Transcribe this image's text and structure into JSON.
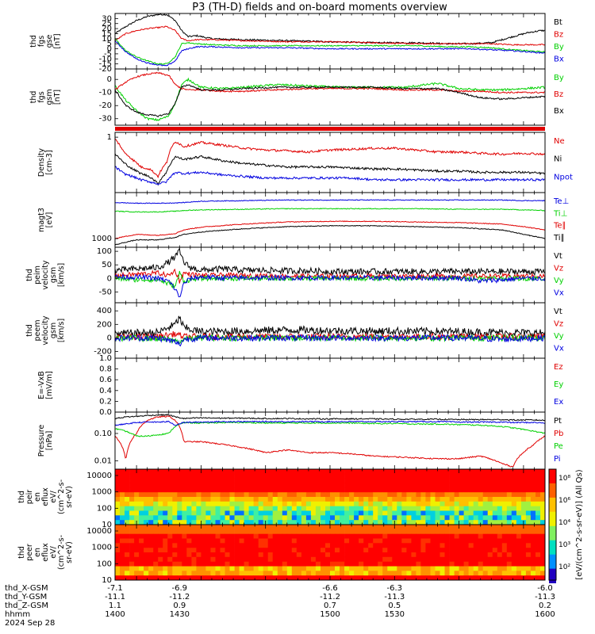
{
  "title": "P3 (TH-D) fields and on-board moments overview",
  "colors": {
    "black": "#000000",
    "red": "#e00000",
    "green": "#00d000",
    "blue": "#0000e0",
    "orange": "#ff8800",
    "yellow": "#f0e000",
    "cyan": "#00c0f0"
  },
  "chart_data": [
    {
      "type": "line",
      "panel": "fgs-gse",
      "ylabel_lines": [
        "thd",
        "fgs",
        "gse",
        "[nT]"
      ],
      "yticks": [
        "30",
        "25",
        "20",
        "15",
        "10",
        "5",
        "0",
        "-5",
        "-10",
        "-15",
        "-20"
      ],
      "ylim": [
        -20,
        35
      ],
      "x": [
        1400,
        1405,
        1410,
        1415,
        1420,
        1424,
        1428,
        1431,
        1434,
        1438,
        1445,
        1460,
        1480,
        1500,
        1520,
        1540,
        1555,
        1565,
        1575,
        1585,
        1592,
        1598,
        1600
      ],
      "series": [
        {
          "name": "Bt",
          "color": "black",
          "values": [
            15,
            22,
            28,
            32,
            34,
            34,
            28,
            18,
            12,
            13,
            10,
            9,
            8,
            7,
            6,
            6,
            5,
            5,
            6,
            12,
            16,
            18,
            18
          ]
        },
        {
          "name": "Bz",
          "color": "red",
          "values": [
            8,
            15,
            18,
            20,
            21,
            22,
            18,
            10,
            8,
            9,
            9,
            8,
            7,
            7,
            6,
            5,
            5,
            5,
            5,
            4,
            4,
            4,
            4
          ]
        },
        {
          "name": "By",
          "color": "green",
          "values": [
            10,
            -2,
            -8,
            -12,
            -15,
            -15,
            -8,
            5,
            6,
            5,
            4,
            3,
            3,
            3,
            3,
            3,
            2,
            2,
            1,
            -1,
            -2,
            -3,
            -3
          ]
        },
        {
          "name": "Bx",
          "color": "blue",
          "values": [
            8,
            -3,
            -10,
            -14,
            -16,
            -17,
            -12,
            -2,
            0,
            2,
            2,
            1,
            1,
            0,
            0,
            0,
            0,
            0,
            -1,
            -2,
            -3,
            -4,
            -4
          ]
        }
      ]
    },
    {
      "type": "line",
      "panel": "fgs-gsm",
      "ylabel_lines": [
        "thd",
        "fgs",
        "gsm",
        "[nT]"
      ],
      "yticks": [
        "0",
        "-10",
        "-20",
        "-30"
      ],
      "ylim": [
        -35,
        8
      ],
      "x": [
        1400,
        1405,
        1410,
        1415,
        1420,
        1425,
        1428,
        1431,
        1434,
        1440,
        1450,
        1460,
        1475,
        1490,
        1505,
        1520,
        1535,
        1550,
        1560,
        1570,
        1580,
        1590,
        1600
      ],
      "series": [
        {
          "name": "By",
          "color": "green",
          "values": [
            -5,
            -16,
            -24,
            -30,
            -31,
            -28,
            -18,
            -4,
            0,
            -6,
            -7,
            -6,
            -4,
            -5,
            -6,
            -6,
            -6,
            -3,
            -7,
            -8,
            -8,
            -7,
            -6
          ]
        },
        {
          "name": "Bz",
          "color": "red",
          "values": [
            -8,
            -2,
            2,
            4,
            5,
            3,
            -4,
            -7,
            -8,
            -8,
            -9,
            -9,
            -8,
            -7,
            -7,
            -7,
            -8,
            -8,
            -9,
            -9,
            -10,
            -10,
            -10
          ]
        },
        {
          "name": "Bx",
          "color": "black",
          "values": [
            -8,
            -20,
            -25,
            -27,
            -28,
            -26,
            -18,
            -6,
            -4,
            -8,
            -8,
            -7,
            -6,
            -6,
            -6,
            -6,
            -7,
            -7,
            -10,
            -14,
            -15,
            -14,
            -13
          ]
        }
      ]
    },
    {
      "type": "line",
      "panel": "density",
      "ylabel_lines": [
        "Density",
        "[cm-3]"
      ],
      "yticks": [
        "1"
      ],
      "ylim": [
        0.05,
        1.3
      ],
      "yscale": "log",
      "x": [
        1400,
        1404,
        1408,
        1412,
        1416,
        1420,
        1424,
        1428,
        1432,
        1440,
        1450,
        1460,
        1470,
        1480,
        1490,
        1500,
        1510,
        1520,
        1530,
        1540,
        1550,
        1560,
        1570,
        1580,
        1590,
        1600
      ],
      "series": [
        {
          "name": "Ne",
          "color": "red",
          "values": [
            0.9,
            0.45,
            0.3,
            0.2,
            0.18,
            0.12,
            0.25,
            0.8,
            0.6,
            0.75,
            0.65,
            0.55,
            0.5,
            0.48,
            0.45,
            0.5,
            0.52,
            0.55,
            0.55,
            0.5,
            0.45,
            0.45,
            0.42,
            0.4,
            0.42,
            0.4
          ]
        },
        {
          "name": "Ni",
          "color": "black",
          "values": [
            0.4,
            0.25,
            0.18,
            0.14,
            0.12,
            0.08,
            0.15,
            0.35,
            0.3,
            0.35,
            0.28,
            0.24,
            0.22,
            0.2,
            0.2,
            0.2,
            0.19,
            0.18,
            0.18,
            0.17,
            0.16,
            0.16,
            0.15,
            0.15,
            0.15,
            0.14
          ]
        },
        {
          "name": "Npot",
          "color": "blue",
          "values": [
            0.2,
            0.14,
            0.12,
            0.1,
            0.09,
            0.08,
            0.09,
            0.15,
            0.14,
            0.15,
            0.13,
            0.12,
            0.11,
            0.11,
            0.11,
            0.11,
            0.11,
            0.1,
            0.1,
            0.1,
            0.1,
            0.1,
            0.1,
            0.1,
            0.1,
            0.1
          ]
        }
      ]
    },
    {
      "type": "line",
      "panel": "temperature",
      "ylabel_lines": [
        "magt3",
        "[eV]"
      ],
      "yticks": [
        "1000"
      ],
      "ylim": [
        500,
        40000
      ],
      "yscale": "log",
      "legend": [
        "Te⊥",
        "Te∥",
        "Ti⊥",
        "Ti∥"
      ],
      "x": [
        1400,
        1410,
        1420,
        1428,
        1432,
        1440,
        1460,
        1480,
        1500,
        1520,
        1540,
        1560,
        1580,
        1590,
        1600
      ],
      "series": [
        {
          "name": "Te⊥",
          "color": "blue",
          "values": [
            18000,
            17000,
            17000,
            17500,
            18000,
            20000,
            21000,
            22000,
            22000,
            22000,
            22000,
            22000,
            22000,
            21000,
            21000
          ]
        },
        {
          "name": "Ti⊥",
          "color": "green",
          "values": [
            9000,
            8500,
            8500,
            9000,
            9500,
            10000,
            10500,
            11000,
            11000,
            11000,
            11000,
            10500,
            10500,
            10000,
            9500
          ]
        },
        {
          "name": "Te∥",
          "color": "red",
          "values": [
            1000,
            1400,
            1300,
            1500,
            2000,
            2500,
            3200,
            3800,
            4000,
            4000,
            3800,
            3600,
            3200,
            2600,
            2000
          ]
        },
        {
          "name": "Ti∥",
          "color": "black",
          "values": [
            600,
            900,
            900,
            1100,
            1400,
            1700,
            2200,
            2600,
            2800,
            2800,
            2600,
            2400,
            2000,
            1400,
            1000
          ]
        }
      ]
    },
    {
      "type": "line",
      "panel": "peim-velocity",
      "ylabel_lines": [
        "thd",
        "peim",
        "velocity",
        "gsm",
        "[km/s]"
      ],
      "yticks": [
        "100",
        "50",
        "0",
        "-50"
      ],
      "ylim": [
        -90,
        115
      ],
      "x": [
        1400,
        1410,
        1420,
        1425,
        1428,
        1430,
        1432,
        1435,
        1440,
        1450,
        1460,
        1470,
        1480,
        1490,
        1500,
        1510,
        1520,
        1530,
        1540,
        1550,
        1560,
        1570,
        1580,
        1590,
        1600
      ],
      "series": [
        {
          "name": "Vt",
          "color": "black",
          "values": [
            30,
            35,
            40,
            60,
            80,
            100,
            60,
            40,
            30,
            35,
            30,
            30,
            28,
            28,
            25,
            25,
            25,
            25,
            25,
            25,
            25,
            25,
            25,
            25,
            25
          ]
        },
        {
          "name": "Vz",
          "color": "red",
          "values": [
            10,
            15,
            20,
            10,
            30,
            -10,
            20,
            15,
            10,
            12,
            10,
            10,
            8,
            8,
            8,
            8,
            8,
            8,
            8,
            8,
            8,
            8,
            8,
            8,
            8
          ]
        },
        {
          "name": "Vy",
          "color": "green",
          "values": [
            0,
            -5,
            -5,
            -20,
            -30,
            20,
            -10,
            -5,
            0,
            0,
            0,
            0,
            0,
            0,
            0,
            0,
            0,
            0,
            0,
            0,
            0,
            0,
            0,
            0,
            0
          ]
        },
        {
          "name": "Vx",
          "color": "blue",
          "values": [
            5,
            5,
            0,
            -10,
            -40,
            -70,
            -20,
            0,
            5,
            2,
            2,
            2,
            2,
            2,
            2,
            2,
            2,
            2,
            2,
            2,
            2,
            -10,
            -5,
            0,
            0
          ]
        }
      ]
    },
    {
      "type": "line",
      "panel": "peem-velocity",
      "ylabel_lines": [
        "thd",
        "peem",
        "velocity",
        "gsm",
        "[km/s]"
      ],
      "yticks": [
        "400",
        "200",
        "0",
        "-200"
      ],
      "ylim": [
        -300,
        520
      ],
      "x": [
        1400,
        1420,
        1428,
        1430,
        1432,
        1440,
        1460,
        1480,
        1500,
        1520,
        1540,
        1560,
        1580,
        1600
      ],
      "series": [
        {
          "name": "Vt",
          "color": "black",
          "values": [
            60,
            80,
            200,
            300,
            150,
            90,
            100,
            120,
            110,
            100,
            100,
            90,
            80,
            70
          ]
        },
        {
          "name": "Vz",
          "color": "red",
          "values": [
            10,
            20,
            60,
            40,
            20,
            20,
            20,
            20,
            20,
            20,
            20,
            20,
            20,
            20
          ]
        },
        {
          "name": "Vy",
          "color": "green",
          "values": [
            0,
            -10,
            -40,
            -60,
            -20,
            0,
            0,
            0,
            0,
            0,
            0,
            0,
            0,
            0
          ]
        },
        {
          "name": "Vx",
          "color": "blue",
          "values": [
            0,
            0,
            -60,
            -100,
            -20,
            0,
            0,
            0,
            0,
            0,
            0,
            0,
            -20,
            0
          ]
        }
      ]
    },
    {
      "type": "line",
      "panel": "efield",
      "ylabel_lines": [
        "E=-VxB",
        "[mV/m]"
      ],
      "yticks": [
        "1.0",
        "0.8",
        "0.6",
        "0.4",
        "0.2",
        "0.0"
      ],
      "ylim": [
        0,
        1
      ],
      "legend": [
        "Ez",
        "Ey",
        "Ex"
      ],
      "series": []
    },
    {
      "type": "line",
      "panel": "pressure",
      "ylabel_lines": [
        "Pressure",
        "[nPa]"
      ],
      "yticks": [
        "0.10",
        "0.01"
      ],
      "ylim": [
        0.005,
        0.6
      ],
      "yscale": "log",
      "x": [
        1400,
        1405,
        1410,
        1415,
        1420,
        1425,
        1428,
        1432,
        1440,
        1450,
        1460,
        1470,
        1480,
        1490,
        1500,
        1510,
        1520,
        1530,
        1540,
        1550,
        1560,
        1570,
        1580,
        1585,
        1590,
        1595,
        1600
      ],
      "series": [
        {
          "name": "Pt",
          "color": "black",
          "values": [
            0.35,
            0.4,
            0.42,
            0.45,
            0.47,
            0.48,
            0.4,
            0.35,
            0.37,
            0.36,
            0.36,
            0.35,
            0.35,
            0.34,
            0.34,
            0.34,
            0.34,
            0.33,
            0.33,
            0.33,
            0.32,
            0.32,
            0.32,
            0.31,
            0.31,
            0.31,
            0.3
          ]
        },
        {
          "name": "Pb",
          "color": "red",
          "values": [
            0.08,
            0.01,
            0.1,
            0.3,
            0.4,
            0.42,
            0.3,
            0.05,
            0.05,
            0.04,
            0.03,
            0.02,
            0.025,
            0.02,
            0.02,
            0.018,
            0.015,
            0.014,
            0.013,
            0.012,
            0.012,
            0.015,
            0.008,
            0.006,
            0.02,
            0.04,
            0.08
          ]
        },
        {
          "name": "Pe",
          "color": "green",
          "values": [
            0.15,
            0.12,
            0.08,
            0.08,
            0.09,
            0.1,
            0.18,
            0.25,
            0.24,
            0.25,
            0.25,
            0.24,
            0.24,
            0.24,
            0.24,
            0.24,
            0.23,
            0.23,
            0.22,
            0.22,
            0.21,
            0.2,
            0.18,
            0.16,
            0.14,
            0.12,
            0.1
          ]
        },
        {
          "name": "Pi",
          "color": "blue",
          "values": [
            0.2,
            0.22,
            0.25,
            0.26,
            0.26,
            0.27,
            0.2,
            0.25,
            0.26,
            0.27,
            0.27,
            0.27,
            0.27,
            0.27,
            0.27,
            0.27,
            0.27,
            0.27,
            0.27,
            0.27,
            0.26,
            0.26,
            0.26,
            0.25,
            0.25,
            0.25,
            0.24
          ]
        }
      ]
    },
    {
      "type": "heatmap",
      "panel": "peir-eflux",
      "ylabel_lines": [
        "thd",
        "peir",
        "en",
        "eflux",
        "eV/",
        "(cm^2-s-",
        "sr-eV)"
      ],
      "yticks": [
        "10000",
        "1000",
        "100",
        "10"
      ]
    },
    {
      "type": "heatmap",
      "panel": "peer-eflux",
      "ylabel_lines": [
        "thd",
        "peer",
        "en",
        "eflux",
        "eV/",
        "(cm^2-s-",
        "sr-eV)"
      ],
      "yticks": [
        "10000",
        "1000",
        "100",
        "10"
      ]
    }
  ],
  "colorbar": {
    "label": "[eV/(cm^2-s-sr-eV)] (All Qs)",
    "ticks": [
      "10⁸",
      "10⁶",
      "10⁴",
      "10³",
      "10²"
    ]
  },
  "xaxis": {
    "rows": [
      {
        "label": "thd_X-GSM",
        "values": [
          "-7.1",
          "-6.9",
          "-6.6",
          "-6.3",
          "-6.0"
        ]
      },
      {
        "label": "thd_Y-GSM",
        "values": [
          "-11.1",
          "-11.2",
          "-11.2",
          "-11.3",
          "-11.3"
        ]
      },
      {
        "label": "thd_Z-GSM",
        "values": [
          "1.1",
          "0.9",
          "0.7",
          "0.5",
          "0.2"
        ]
      },
      {
        "label": "hhmm",
        "values": [
          "1400",
          "1430",
          "1500",
          "1530",
          "1600"
        ]
      }
    ],
    "date": "2024 Sep 28"
  }
}
